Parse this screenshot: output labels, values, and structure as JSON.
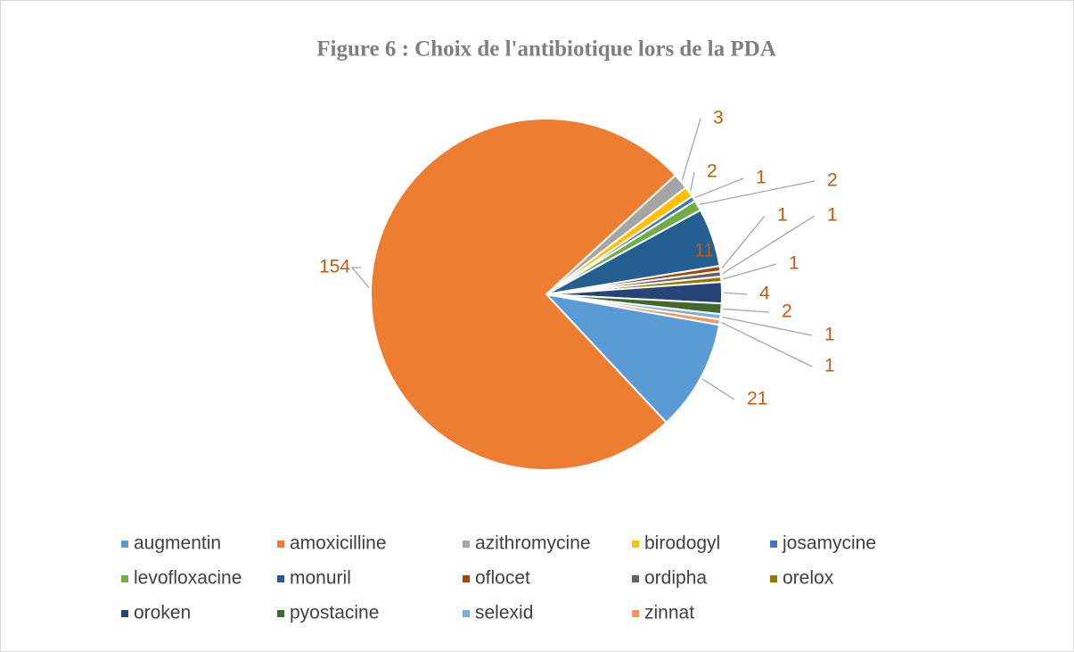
{
  "chart_data": {
    "type": "pie",
    "title": "Figure 6 : Choix de l'antibiotique lors de la PDA",
    "categories": [
      "augmentin",
      "amoxicilline",
      "azithromycine",
      "birodogyl",
      "josamycine",
      "levofloxacine",
      "monuril",
      "oflocet",
      "ordipha",
      "orelox",
      "oroken",
      "pyostacine",
      "selexid",
      "zinnat"
    ],
    "values": [
      21,
      154,
      3,
      2,
      1,
      2,
      11,
      1,
      1,
      1,
      4,
      2,
      1,
      1
    ],
    "colors": [
      "#5b9bd5",
      "#ed7d31",
      "#a5a5a5",
      "#ffc000",
      "#4472c4",
      "#70ad47",
      "#255e91",
      "#9e480e",
      "#636363",
      "#997300",
      "#264478",
      "#43682b",
      "#7cafdd",
      "#f1975a"
    ],
    "legend": "bottom"
  }
}
